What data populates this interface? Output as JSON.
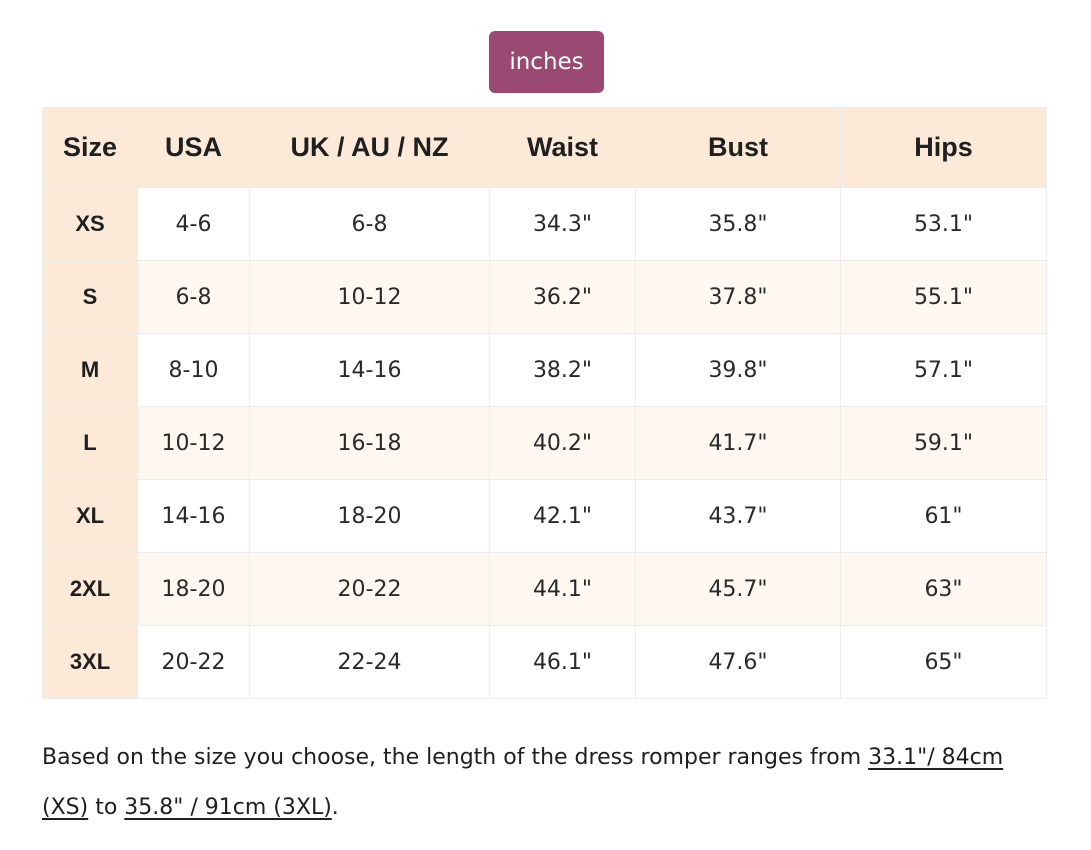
{
  "unit_toggle": {
    "label": "inches"
  },
  "table": {
    "headers": [
      "Size",
      "USA",
      "UK / AU / NZ",
      "Waist",
      "Bust",
      "Hips"
    ],
    "rows": [
      [
        "XS",
        "4-6",
        "6-8",
        "34.3\"",
        "35.8\"",
        "53.1\""
      ],
      [
        "S",
        "6-8",
        "10-12",
        "36.2\"",
        "37.8\"",
        "55.1\""
      ],
      [
        "M",
        "8-10",
        "14-16",
        "38.2\"",
        "39.8\"",
        "57.1\""
      ],
      [
        "L",
        "10-12",
        "16-18",
        "40.2\"",
        "41.7\"",
        "59.1\""
      ],
      [
        "XL",
        "14-16",
        "18-20",
        "42.1\"",
        "43.7\"",
        "61\""
      ],
      [
        "2XL",
        "18-20",
        "20-22",
        "44.1\"",
        "45.7\"",
        "63\""
      ],
      [
        "3XL",
        "20-22",
        "22-24",
        "46.1\"",
        "47.6\"",
        "65\""
      ]
    ]
  },
  "note": {
    "prefix": "Based on the size you choose, the length of the dress romper ranges from ",
    "min_length": "33.1\"/ 84cm (XS)",
    "middle": " to ",
    "max_length": "35.8\" / 91cm (3XL)",
    "suffix": "."
  }
}
